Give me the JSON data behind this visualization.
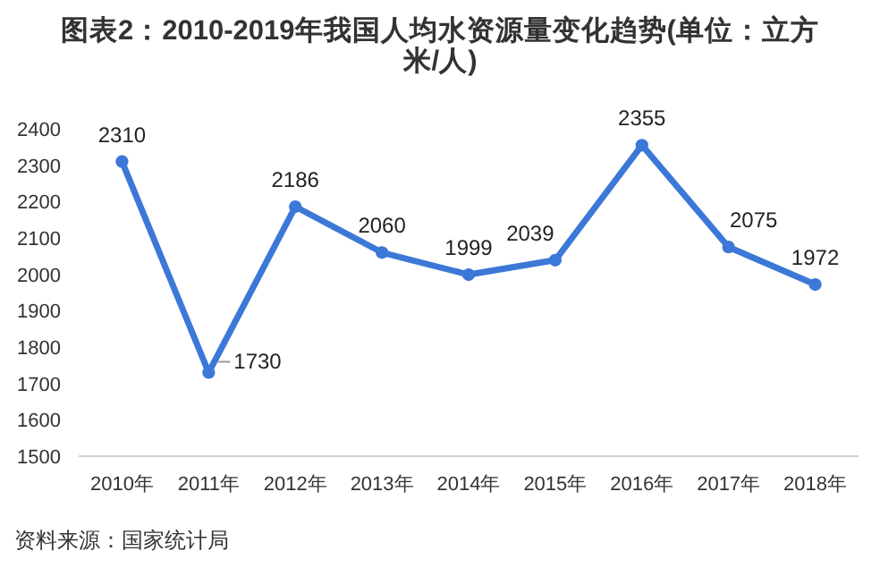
{
  "chart_data": {
    "type": "line",
    "title": "图表2：2010-2019年我国人均水资源量变化趋势(单位：立方米/人)",
    "categories": [
      "2010年",
      "2011年",
      "2012年",
      "2013年",
      "2014年",
      "2015年",
      "2016年",
      "2017年",
      "2018年"
    ],
    "series": [
      {
        "color": "#3c78d8",
        "values": [
          2310,
          1730,
          2186,
          2060,
          1999,
          2039,
          2355,
          2075,
          1972
        ]
      }
    ],
    "ylim": [
      1500,
      2400
    ],
    "yticks": [
      1500,
      1600,
      1700,
      1800,
      1900,
      2000,
      2100,
      2200,
      2300,
      2400
    ],
    "grid": false,
    "marker": "circle",
    "line_style": "solid",
    "data_labels": true,
    "annotations": [
      "资料来源：国家统计局"
    ]
  }
}
